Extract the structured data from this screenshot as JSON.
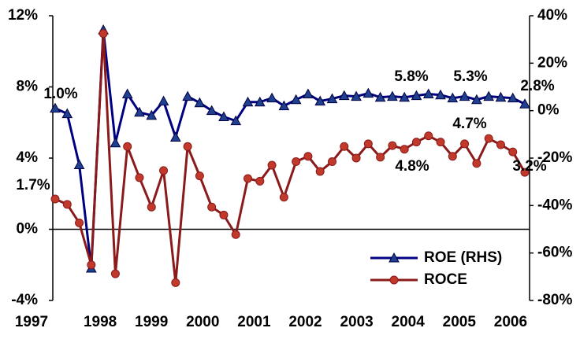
{
  "chart_data": {
    "type": "line",
    "categories": [
      "1997",
      null,
      null,
      null,
      "1998",
      null,
      null,
      null,
      "1999",
      null,
      null,
      null,
      "2000",
      null,
      null,
      null,
      "2001",
      null,
      null,
      null,
      "2002",
      null,
      null,
      null,
      "2003",
      null,
      null,
      null,
      "2004",
      null,
      null,
      null,
      "2005",
      null,
      null,
      null,
      "2006",
      null,
      null,
      null
    ],
    "series": [
      {
        "name": "ROE (RHS)",
        "color": "#000080",
        "marker": "triangle",
        "marker_color": "#1f3f8f",
        "axis": "y2",
        "values": [
          1.0,
          -1.3,
          -22.8,
          -66.4,
          34.0,
          -13.6,
          7.0,
          -0.7,
          -2.0,
          4.0,
          -11.2,
          6.0,
          3.3,
          0,
          -2.6,
          -4.3,
          3.6,
          3.6,
          5.3,
          2.0,
          4.6,
          7.0,
          4.0,
          5.0,
          6.3,
          6.0,
          7.3,
          5.6,
          6.0,
          5.6,
          6.3,
          7.0,
          6.6,
          5.3,
          6.0,
          4.6,
          6.0,
          5.6,
          5.3,
          2.8
        ]
      },
      {
        "name": "ROCE",
        "color": "#8b1a1a",
        "marker": "circle",
        "marker_color": "#c0392b",
        "values": [
          1.7,
          1.4,
          0.36,
          -2.0,
          11.0,
          -2.5,
          4.65,
          2.9,
          1.25,
          3.3,
          -3.0,
          4.65,
          3.0,
          1.25,
          0.8,
          -0.3,
          2.85,
          2.7,
          3.6,
          1.8,
          3.8,
          4.1,
          3.25,
          3.8,
          4.65,
          4.0,
          4.8,
          4.05,
          4.7,
          4.5,
          4.9,
          5.25,
          4.9,
          4.1,
          4.8,
          3.7,
          5.1,
          4.75,
          4.35,
          3.2
        ]
      }
    ],
    "ylim": [
      -4,
      12
    ],
    "yticks": [
      {
        "value": -4,
        "label": "-4%"
      },
      {
        "value": 0,
        "label": "0%"
      },
      {
        "value": 4,
        "label": "4%"
      },
      {
        "value": 8,
        "label": "8%"
      },
      {
        "value": 12,
        "label": "12%"
      }
    ],
    "y2lim": [
      -80,
      40
    ],
    "y2ticks": [
      {
        "value": -80,
        "label": "-80%"
      },
      {
        "value": -60,
        "label": "-60%"
      },
      {
        "value": -40,
        "label": "-40%"
      },
      {
        "value": -20,
        "label": "-20%"
      },
      {
        "value": 0,
        "label": "0%"
      },
      {
        "value": 20,
        "label": "20%"
      },
      {
        "value": 40,
        "label": "40%"
      }
    ],
    "annotations": [
      "1.0%",
      "1.7%",
      "5.8%",
      "5.3%",
      "2.8%",
      "4.7%",
      "4.8%",
      "3.2%"
    ],
    "legend": "lower right"
  }
}
